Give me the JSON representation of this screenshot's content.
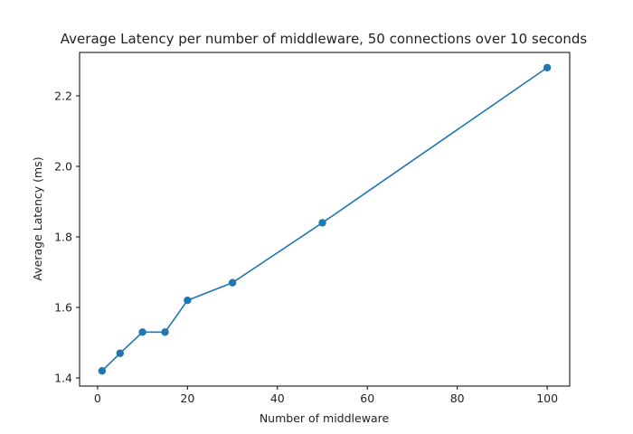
{
  "chart_data": {
    "type": "line",
    "title": "Average Latency per number of middleware, 50 connections over 10 seconds",
    "xlabel": "Number of middleware",
    "ylabel": "Average Latency (ms)",
    "x": [
      1,
      5,
      10,
      15,
      20,
      30,
      50,
      100
    ],
    "series": [
      {
        "values": [
          1.42,
          1.47,
          1.53,
          1.53,
          1.62,
          1.67,
          1.84,
          2.28
        ]
      }
    ],
    "xlim": [
      -4.0,
      105.0
    ],
    "ylim": [
      1.377,
      2.323
    ],
    "x_ticks": [
      0,
      20,
      40,
      60,
      80,
      100
    ],
    "x_tick_labels": [
      "0",
      "20",
      "40",
      "60",
      "80",
      "100"
    ],
    "y_ticks": [
      1.4,
      1.6,
      1.8,
      2.0,
      2.2
    ],
    "y_tick_labels": [
      "1.4",
      "1.6",
      "1.8",
      "2.0",
      "2.2"
    ],
    "grid": false,
    "markers": "circle",
    "line_color": "#1f77b4"
  }
}
